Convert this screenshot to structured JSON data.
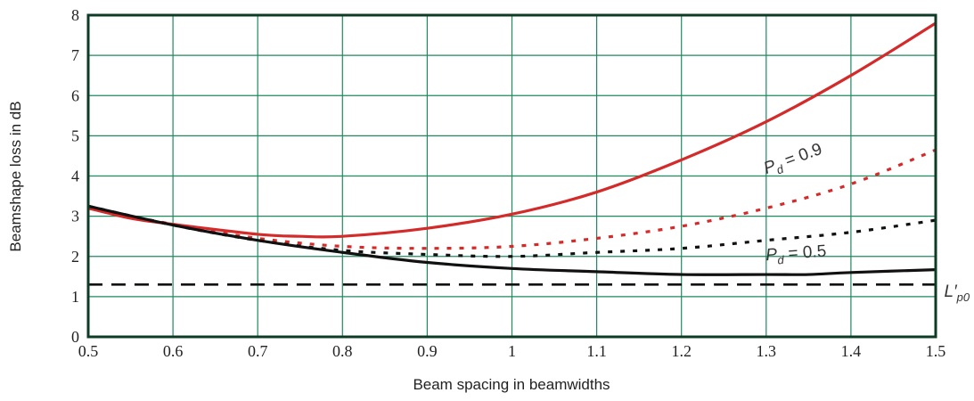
{
  "chart_data": {
    "type": "line",
    "title": "",
    "xlabel": "Beam spacing in beamwidths",
    "ylabel": "Beamshape loss in dB",
    "xlim": [
      0.5,
      1.5
    ],
    "ylim": [
      0,
      8
    ],
    "grid": true,
    "grid_color": "#1e8a5e",
    "xticks": [
      "0.5",
      "0.6",
      "0.7",
      "0.8",
      "0.9",
      "1",
      "1.1",
      "1.2",
      "1.3",
      "1.4",
      "1.5"
    ],
    "yticks": [
      "0",
      "1",
      "2",
      "3",
      "4",
      "5",
      "6",
      "7",
      "8"
    ],
    "series": [
      {
        "name": "red-solid",
        "color": "#d42a2a",
        "style": "solid",
        "x": [
          0.5,
          0.55,
          0.6,
          0.7,
          0.75,
          0.8,
          0.9,
          1.0,
          1.1,
          1.2,
          1.3,
          1.4,
          1.5
        ],
        "y": [
          3.2,
          2.95,
          2.8,
          2.55,
          2.5,
          2.5,
          2.7,
          3.05,
          3.6,
          4.4,
          5.35,
          6.5,
          7.8
        ]
      },
      {
        "name": "red-dotted",
        "color": "#d42a2a",
        "style": "dotted",
        "x": [
          0.5,
          0.6,
          0.7,
          0.8,
          0.9,
          1.0,
          1.1,
          1.2,
          1.3,
          1.4,
          1.5
        ],
        "y": [
          3.2,
          2.8,
          2.45,
          2.25,
          2.2,
          2.25,
          2.45,
          2.75,
          3.2,
          3.8,
          4.65
        ]
      },
      {
        "name": "black-dotted",
        "color": "#111111",
        "style": "dotted",
        "x": [
          0.5,
          0.6,
          0.7,
          0.8,
          0.9,
          1.0,
          1.1,
          1.2,
          1.3,
          1.4,
          1.5
        ],
        "y": [
          3.25,
          2.78,
          2.4,
          2.15,
          2.05,
          2.0,
          2.1,
          2.2,
          2.4,
          2.6,
          2.9
        ]
      },
      {
        "name": "black-solid",
        "color": "#111111",
        "style": "solid",
        "x": [
          0.5,
          0.6,
          0.7,
          0.8,
          0.9,
          1.0,
          1.1,
          1.2,
          1.3,
          1.35,
          1.4,
          1.5
        ],
        "y": [
          3.25,
          2.78,
          2.4,
          2.1,
          1.85,
          1.7,
          1.62,
          1.55,
          1.55,
          1.55,
          1.6,
          1.67
        ]
      },
      {
        "name": "L'p0",
        "color": "#111111",
        "style": "dashed",
        "x": [
          0.5,
          1.5
        ],
        "y": [
          1.3,
          1.3
        ]
      }
    ],
    "annotations": [
      {
        "text": "P",
        "sub": "d",
        "rest": " = 0.9",
        "x": 1.3,
        "y": 4.05,
        "rotate": -20
      },
      {
        "text": "P",
        "sub": "d",
        "rest": " = 0.5",
        "x": 1.3,
        "y": 1.9,
        "rotate": -4
      },
      {
        "text": "L′",
        "sub": "p0",
        "rest": "",
        "x": 1.51,
        "y": 1.0,
        "rotate": 0
      }
    ]
  }
}
